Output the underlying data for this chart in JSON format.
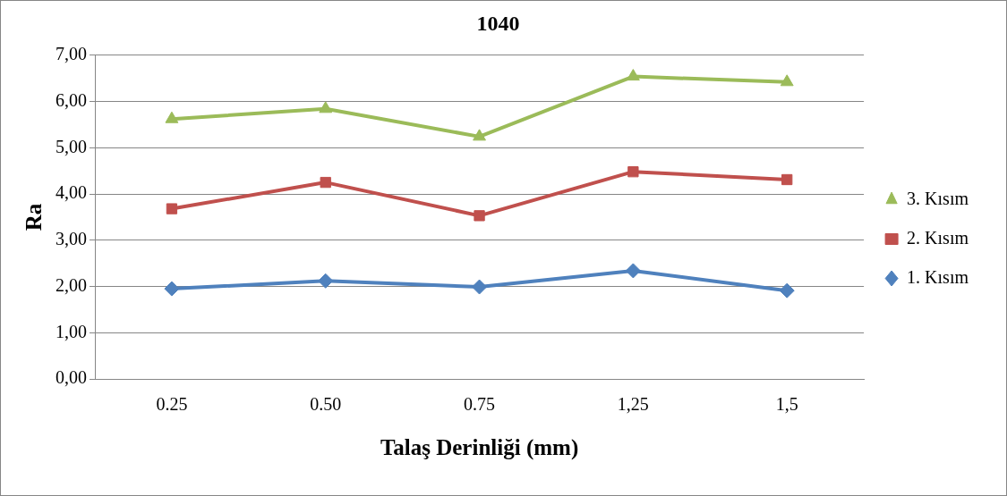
{
  "chart_data": {
    "type": "line",
    "title": "1040",
    "xlabel": "Talaş Derinliği (mm)",
    "ylabel": "Ra",
    "categories": [
      "0.25",
      "0.50",
      "0.75",
      "1,25",
      "1,5"
    ],
    "series": [
      {
        "name": "3. Kısım",
        "color": "#9bbb59",
        "marker": "triangle",
        "values": [
          5.62,
          5.84,
          5.24,
          6.54,
          6.42
        ]
      },
      {
        "name": "2. Kısım",
        "color": "#c0504d",
        "marker": "square",
        "values": [
          3.68,
          4.25,
          3.53,
          4.48,
          4.31
        ]
      },
      {
        "name": "1. Kısım",
        "color": "#4f81bd",
        "marker": "diamond",
        "values": [
          1.95,
          2.12,
          1.99,
          2.34,
          1.91
        ]
      }
    ],
    "ylim": [
      0,
      7
    ],
    "yticks": [
      {
        "value": 0,
        "label": "0,00"
      },
      {
        "value": 1,
        "label": "1,00"
      },
      {
        "value": 2,
        "label": "2,00"
      },
      {
        "value": 3,
        "label": "3,00"
      },
      {
        "value": 4,
        "label": "4,00"
      },
      {
        "value": 5,
        "label": "5,00"
      },
      {
        "value": 6,
        "label": "6,00"
      },
      {
        "value": 7,
        "label": "7,00"
      }
    ],
    "grid": "y",
    "legend": "right",
    "line_style": "solid"
  }
}
